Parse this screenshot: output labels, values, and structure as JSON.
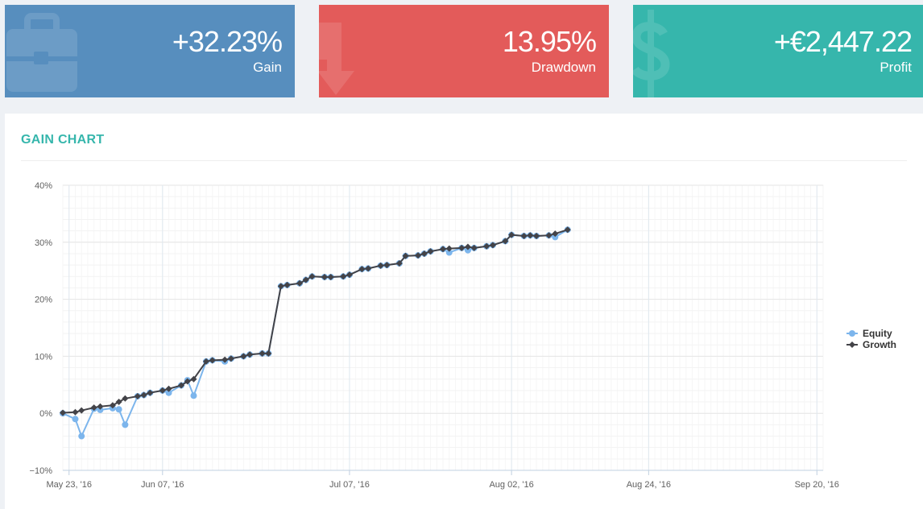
{
  "stats": {
    "gain": {
      "value": "+32.23%",
      "label": "Gain",
      "icon": "briefcase-icon",
      "color": "#578ebe"
    },
    "drawdown": {
      "value": "13.95%",
      "label": "Drawdown",
      "icon": "arrow-down-icon",
      "color": "#e35b5a"
    },
    "profit": {
      "value": "+€2,447.22",
      "label": "Profit",
      "icon": "dollar-icon",
      "color": "#36b6ac"
    }
  },
  "panel": {
    "title": "GAIN CHART"
  },
  "chart_data": {
    "type": "line",
    "title": "",
    "xlabel": "",
    "ylabel": "",
    "x_type": "date",
    "xlim": [
      "2016-05-22",
      "2016-09-21"
    ],
    "ylim": [
      -10,
      40
    ],
    "yticks": [
      -10,
      0,
      10,
      20,
      30,
      40
    ],
    "ytick_labels": [
      "−10%",
      "0%",
      "10%",
      "20%",
      "30%",
      "40%"
    ],
    "xticks": [
      "2016-05-23",
      "2016-06-07",
      "2016-07-07",
      "2016-08-02",
      "2016-08-24",
      "2016-09-20"
    ],
    "xtick_labels": [
      "May 23, '16",
      "Jun 07, '16",
      "Jul 07, '16",
      "Aug 02, '16",
      "Aug 24, '16",
      "Sep 20, '16"
    ],
    "grid": true,
    "legend": "right",
    "x": [
      "2016-05-23",
      "2016-05-24",
      "2016-05-26",
      "2016-05-27",
      "2016-05-28",
      "2016-05-30",
      "2016-05-31",
      "2016-06-01",
      "2016-06-02",
      "2016-06-03",
      "2016-06-04",
      "2016-06-06",
      "2016-06-07",
      "2016-06-08",
      "2016-06-09",
      "2016-06-11",
      "2016-06-12",
      "2016-06-13",
      "2016-06-15",
      "2016-06-16",
      "2016-06-17",
      "2016-06-18",
      "2016-06-20",
      "2016-06-21",
      "2016-06-22",
      "2016-06-24",
      "2016-06-25",
      "2016-06-26",
      "2016-06-27",
      "2016-06-29",
      "2016-06-30",
      "2016-07-01",
      "2016-07-02",
      "2016-07-04",
      "2016-07-05",
      "2016-07-06",
      "2016-07-08",
      "2016-07-09",
      "2016-07-10",
      "2016-07-11",
      "2016-07-13",
      "2016-07-14",
      "2016-07-15",
      "2016-07-16",
      "2016-07-18",
      "2016-07-19",
      "2016-07-20",
      "2016-07-22",
      "2016-07-23",
      "2016-07-24",
      "2016-07-25",
      "2016-07-27",
      "2016-07-28",
      "2016-07-29",
      "2016-07-30",
      "2016-08-01",
      "2016-08-02",
      "2016-08-03",
      "2016-08-05",
      "2016-08-06",
      "2016-08-07",
      "2016-08-08",
      "2016-08-10",
      "2016-08-11",
      "2016-08-12",
      "2016-08-13",
      "2016-08-15",
      "2016-08-16",
      "2016-08-17",
      "2016-08-19",
      "2016-08-20",
      "2016-08-21",
      "2016-08-22",
      "2016-08-24",
      "2016-08-25",
      "2016-08-27",
      "2016-08-28",
      "2016-08-29",
      "2016-08-31",
      "2016-09-01",
      "2016-09-02",
      "2016-09-04",
      "2016-09-05",
      "2016-09-06",
      "2016-09-07",
      "2016-09-09",
      "2016-09-10",
      "2016-09-11",
      "2016-09-12",
      "2016-09-14",
      "2016-09-15",
      "2016-09-16",
      "2016-09-18",
      "2016-09-19",
      "2016-09-20",
      "2016-09-21"
    ],
    "series": [
      {
        "name": "Equity",
        "color": "#7cb5ec",
        "marker": "circle",
        "points": [
          [
            "2016-05-22",
            0.0
          ],
          [
            "2016-05-24",
            -1.0
          ],
          [
            "2016-05-25",
            -4.0
          ],
          [
            "2016-05-27",
            0.8
          ],
          [
            "2016-05-28",
            0.6
          ],
          [
            "2016-05-30",
            0.9
          ],
          [
            "2016-05-31",
            0.7
          ],
          [
            "2016-06-01",
            -2.0
          ],
          [
            "2016-06-03",
            3.0
          ],
          [
            "2016-06-04",
            3.2
          ],
          [
            "2016-06-05",
            3.6
          ],
          [
            "2016-06-07",
            4.0
          ],
          [
            "2016-06-08",
            3.6
          ],
          [
            "2016-06-10",
            4.9
          ],
          [
            "2016-06-11",
            5.8
          ],
          [
            "2016-06-12",
            3.1
          ],
          [
            "2016-06-14",
            9.1
          ],
          [
            "2016-06-15",
            9.3
          ],
          [
            "2016-06-17",
            9.1
          ],
          [
            "2016-06-18",
            9.6
          ],
          [
            "2016-06-20",
            10.0
          ],
          [
            "2016-06-21",
            10.3
          ],
          [
            "2016-06-23",
            10.5
          ],
          [
            "2016-06-24",
            10.5
          ],
          [
            "2016-06-26",
            22.3
          ],
          [
            "2016-06-27",
            22.5
          ],
          [
            "2016-06-29",
            22.8
          ],
          [
            "2016-06-30",
            23.4
          ],
          [
            "2016-07-01",
            24.0
          ],
          [
            "2016-07-03",
            23.9
          ],
          [
            "2016-07-04",
            23.9
          ],
          [
            "2016-07-06",
            24.0
          ],
          [
            "2016-07-07",
            24.3
          ],
          [
            "2016-07-09",
            25.3
          ],
          [
            "2016-07-10",
            25.4
          ],
          [
            "2016-07-12",
            25.9
          ],
          [
            "2016-07-13",
            26.0
          ],
          [
            "2016-07-15",
            26.3
          ],
          [
            "2016-07-16",
            27.6
          ],
          [
            "2016-07-18",
            27.7
          ],
          [
            "2016-07-19",
            28.0
          ],
          [
            "2016-07-20",
            28.4
          ],
          [
            "2016-07-22",
            28.8
          ],
          [
            "2016-07-23",
            28.2
          ],
          [
            "2016-07-25",
            29.0
          ],
          [
            "2016-07-26",
            28.6
          ],
          [
            "2016-07-27",
            29.0
          ],
          [
            "2016-07-29",
            29.3
          ],
          [
            "2016-07-30",
            29.5
          ],
          [
            "2016-08-01",
            30.2
          ],
          [
            "2016-08-02",
            31.3
          ],
          [
            "2016-08-04",
            31.1
          ],
          [
            "2016-08-05",
            31.2
          ],
          [
            "2016-08-06",
            31.1
          ],
          [
            "2016-08-08",
            31.2
          ],
          [
            "2016-08-09",
            30.9
          ],
          [
            "2016-08-11",
            32.2
          ]
        ]
      },
      {
        "name": "Growth",
        "color": "#434348",
        "marker": "diamond",
        "points": [
          [
            "2016-05-22",
            0.1
          ],
          [
            "2016-05-24",
            0.2
          ],
          [
            "2016-05-25",
            0.5
          ],
          [
            "2016-05-27",
            1.0
          ],
          [
            "2016-05-28",
            1.2
          ],
          [
            "2016-05-30",
            1.4
          ],
          [
            "2016-05-31",
            2.0
          ],
          [
            "2016-06-01",
            2.6
          ],
          [
            "2016-06-03",
            3.0
          ],
          [
            "2016-06-04",
            3.2
          ],
          [
            "2016-06-05",
            3.6
          ],
          [
            "2016-06-07",
            4.0
          ],
          [
            "2016-06-08",
            4.3
          ],
          [
            "2016-06-10",
            4.9
          ],
          [
            "2016-06-11",
            5.6
          ],
          [
            "2016-06-12",
            6.0
          ],
          [
            "2016-06-14",
            9.1
          ],
          [
            "2016-06-15",
            9.3
          ],
          [
            "2016-06-17",
            9.4
          ],
          [
            "2016-06-18",
            9.6
          ],
          [
            "2016-06-20",
            10.0
          ],
          [
            "2016-06-21",
            10.3
          ],
          [
            "2016-06-23",
            10.5
          ],
          [
            "2016-06-24",
            10.5
          ],
          [
            "2016-06-26",
            22.3
          ],
          [
            "2016-06-27",
            22.5
          ],
          [
            "2016-06-29",
            22.8
          ],
          [
            "2016-06-30",
            23.4
          ],
          [
            "2016-07-01",
            24.0
          ],
          [
            "2016-07-03",
            23.9
          ],
          [
            "2016-07-04",
            23.9
          ],
          [
            "2016-07-06",
            24.0
          ],
          [
            "2016-07-07",
            24.3
          ],
          [
            "2016-07-09",
            25.3
          ],
          [
            "2016-07-10",
            25.4
          ],
          [
            "2016-07-12",
            25.9
          ],
          [
            "2016-07-13",
            26.0
          ],
          [
            "2016-07-15",
            26.3
          ],
          [
            "2016-07-16",
            27.6
          ],
          [
            "2016-07-18",
            27.7
          ],
          [
            "2016-07-19",
            28.0
          ],
          [
            "2016-07-20",
            28.4
          ],
          [
            "2016-07-22",
            28.8
          ],
          [
            "2016-07-23",
            28.9
          ],
          [
            "2016-07-25",
            29.0
          ],
          [
            "2016-07-26",
            29.2
          ],
          [
            "2016-07-27",
            29.0
          ],
          [
            "2016-07-29",
            29.3
          ],
          [
            "2016-07-30",
            29.5
          ],
          [
            "2016-08-01",
            30.2
          ],
          [
            "2016-08-02",
            31.3
          ],
          [
            "2016-08-04",
            31.1
          ],
          [
            "2016-08-05",
            31.2
          ],
          [
            "2016-08-06",
            31.1
          ],
          [
            "2016-08-08",
            31.2
          ],
          [
            "2016-08-09",
            31.5
          ],
          [
            "2016-08-11",
            32.2
          ]
        ]
      }
    ]
  }
}
